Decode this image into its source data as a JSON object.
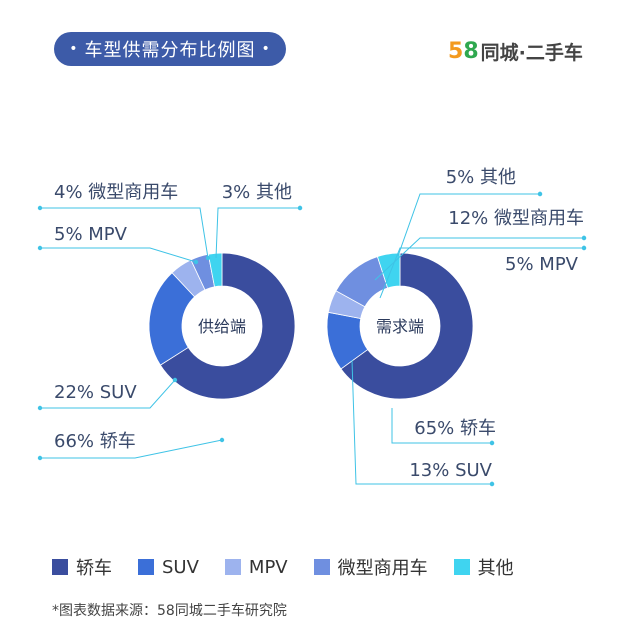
{
  "header": {
    "title": "车型供需分布比例图",
    "title_dot": "•",
    "brand_5": "5",
    "brand_8": "8",
    "brand_rest": "同城·二手车"
  },
  "chart_data": [
    {
      "type": "pie",
      "center_label": "供给端",
      "slices": [
        {
          "name": "轿车",
          "value": 66,
          "label": "66% 轿车",
          "color": "#3a4d9e"
        },
        {
          "name": "SUV",
          "value": 22,
          "label": "22% SUV",
          "color": "#3b6fd8"
        },
        {
          "name": "MPV",
          "value": 5,
          "label": "5% MPV",
          "color": "#9db3ee"
        },
        {
          "name": "微型商用车",
          "value": 4,
          "label": "4% 微型商用车",
          "color": "#6f8fe0"
        },
        {
          "name": "其他",
          "value": 3,
          "label": "3% 其他",
          "color": "#3fd4f0"
        }
      ]
    },
    {
      "type": "pie",
      "center_label": "需求端",
      "slices": [
        {
          "name": "轿车",
          "value": 65,
          "label": "65% 轿车",
          "color": "#3a4d9e"
        },
        {
          "name": "SUV",
          "value": 13,
          "label": "13% SUV",
          "color": "#3b6fd8"
        },
        {
          "name": "MPV",
          "value": 5,
          "label": "5% MPV",
          "color": "#9db3ee"
        },
        {
          "name": "微型商用车",
          "value": 12,
          "label": "12% 微型商用车",
          "color": "#6f8fe0"
        },
        {
          "name": "其他",
          "value": 5,
          "label": "5% 其他",
          "color": "#3fd4f0"
        }
      ]
    }
  ],
  "legend": [
    {
      "label": "轿车",
      "color": "#3a4d9e"
    },
    {
      "label": "SUV",
      "color": "#3b6fd8"
    },
    {
      "label": "MPV",
      "color": "#9db3ee"
    },
    {
      "label": "微型商用车",
      "color": "#6f8fe0"
    },
    {
      "label": "其他",
      "color": "#3fd4f0"
    }
  ],
  "footer": {
    "source": "*图表数据来源：58同城二手车研究院"
  },
  "colors": {
    "accent": "#3d5ba8",
    "leader": "#3fc3e6"
  }
}
